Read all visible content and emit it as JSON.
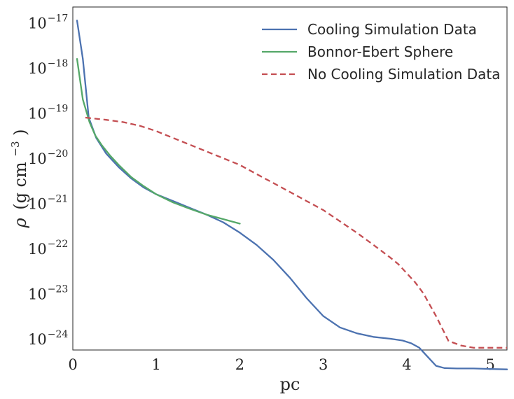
{
  "chart_data": {
    "type": "line",
    "title": "",
    "xlabel": "pc",
    "ylabel": "ρ (g cm⁻³)",
    "ylabel_parts": {
      "symbol": "ρ",
      "open": "(g cm",
      "exp": "−3",
      "close": ")"
    },
    "xlim": [
      0,
      5.2
    ],
    "ylim_log10": [
      -24.25,
      -16.65
    ],
    "y_scale": "log",
    "grid": false,
    "legend_position": "top-right",
    "x_ticks": [
      0,
      1,
      2,
      3,
      4,
      5
    ],
    "x_tick_labels": [
      "0",
      "1",
      "2",
      "3",
      "4",
      "5"
    ],
    "y_ticks_log10": [
      -17,
      -18,
      -19,
      -20,
      -21,
      -22,
      -23,
      -24
    ],
    "y_tick_base": "10",
    "y_tick_exponents": [
      "−17",
      "−18",
      "−19",
      "−20",
      "−21",
      "−22",
      "−23",
      "−24"
    ],
    "series": [
      {
        "name": "Cooling Simulation Data",
        "color": "#4C72B0",
        "style": "solid",
        "x": [
          0.05,
          0.12,
          0.19,
          0.28,
          0.4,
          0.55,
          0.7,
          0.85,
          1.0,
          1.2,
          1.4,
          1.6,
          1.8,
          2.0,
          2.2,
          2.4,
          2.6,
          2.8,
          3.0,
          3.2,
          3.4,
          3.6,
          3.8,
          3.95,
          4.05,
          4.15,
          4.25,
          4.35,
          4.45,
          4.6,
          4.8,
          5.0,
          5.2
        ],
        "y_log10": [
          -16.95,
          -17.8,
          -19.1,
          -19.55,
          -19.9,
          -20.2,
          -20.45,
          -20.65,
          -20.8,
          -20.95,
          -21.1,
          -21.25,
          -21.42,
          -21.65,
          -21.92,
          -22.25,
          -22.65,
          -23.1,
          -23.5,
          -23.75,
          -23.88,
          -23.96,
          -24.0,
          -24.04,
          -24.1,
          -24.2,
          -24.4,
          -24.6,
          -24.65,
          -24.66,
          -24.66,
          -24.67,
          -24.68
        ]
      },
      {
        "name": "Bonnor-Ebert Sphere",
        "color": "#55A868",
        "style": "solid",
        "x": [
          0.05,
          0.12,
          0.2,
          0.27,
          0.35,
          0.45,
          0.55,
          0.7,
          0.85,
          1.0,
          1.2,
          1.4,
          1.6,
          1.8,
          2.0
        ],
        "y_log10": [
          -17.8,
          -18.7,
          -19.2,
          -19.5,
          -19.72,
          -19.95,
          -20.15,
          -20.42,
          -20.62,
          -20.8,
          -20.98,
          -21.12,
          -21.25,
          -21.35,
          -21.45
        ]
      },
      {
        "name": "No Cooling Simulation Data",
        "color": "#C44E52",
        "style": "dashed",
        "x": [
          0.15,
          0.4,
          0.6,
          0.8,
          1.0,
          1.2,
          1.4,
          1.6,
          1.8,
          2.0,
          2.2,
          2.4,
          2.6,
          2.8,
          3.0,
          3.2,
          3.4,
          3.6,
          3.8,
          3.9,
          4.0,
          4.1,
          4.2,
          4.35,
          4.5,
          4.65,
          4.8,
          5.0,
          5.2
        ],
        "y_log10": [
          -19.1,
          -19.15,
          -19.2,
          -19.28,
          -19.4,
          -19.55,
          -19.7,
          -19.85,
          -20.0,
          -20.15,
          -20.35,
          -20.55,
          -20.75,
          -20.95,
          -21.15,
          -21.4,
          -21.65,
          -21.92,
          -22.2,
          -22.35,
          -22.55,
          -22.75,
          -23.0,
          -23.5,
          -24.05,
          -24.15,
          -24.2,
          -24.2,
          -24.2
        ]
      }
    ]
  }
}
